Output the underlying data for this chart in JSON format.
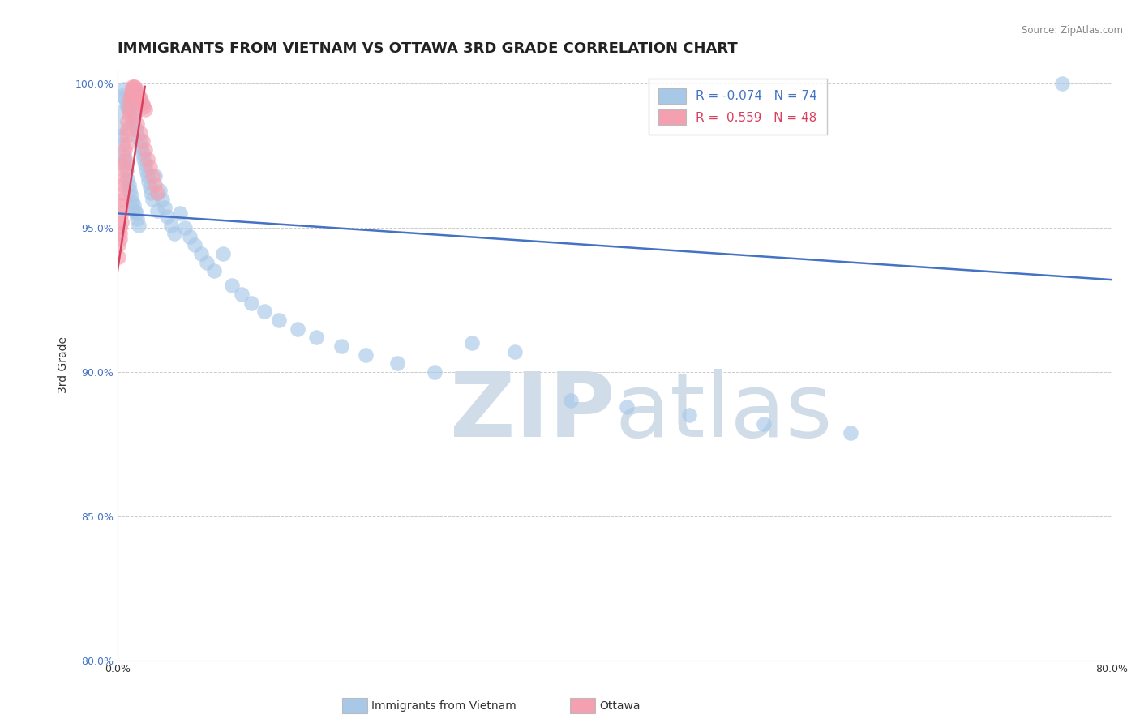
{
  "title": "IMMIGRANTS FROM VIETNAM VS OTTAWA 3RD GRADE CORRELATION CHART",
  "source_text": "Source: ZipAtlas.com",
  "ylabel": "3rd Grade",
  "xlim": [
    0.0,
    0.8
  ],
  "ylim": [
    0.8,
    1.005
  ],
  "xticks": [
    0.0,
    0.1,
    0.2,
    0.3,
    0.4,
    0.5,
    0.6,
    0.7,
    0.8
  ],
  "xticklabels": [
    "0.0%",
    "",
    "",
    "",
    "",
    "",
    "",
    "",
    "80.0%"
  ],
  "yticks": [
    0.8,
    0.85,
    0.9,
    0.95,
    1.0
  ],
  "yticklabels": [
    "80.0%",
    "85.0%",
    "90.0%",
    "95.0%",
    "100.0%"
  ],
  "blue_scatter_color": "#a8c8e8",
  "pink_scatter_color": "#f4a0b0",
  "blue_trend_color": "#4472c4",
  "pink_trend_color": "#d94060",
  "watermark_color": "#d0dde8",
  "background_color": "#ffffff",
  "grid_color": "#cccccc",
  "title_fontsize": 13,
  "axis_label_fontsize": 10,
  "tick_fontsize": 9,
  "blue_trend_x0": 0.0,
  "blue_trend_y0": 0.955,
  "blue_trend_x1": 0.8,
  "blue_trend_y1": 0.932,
  "pink_trend_x0": 0.0,
  "pink_trend_y0": 0.935,
  "pink_trend_x1": 0.022,
  "pink_trend_y1": 0.999,
  "blue_x": [
    0.001,
    0.002,
    0.003,
    0.004,
    0.004,
    0.005,
    0.005,
    0.006,
    0.006,
    0.007,
    0.007,
    0.008,
    0.008,
    0.009,
    0.01,
    0.01,
    0.011,
    0.011,
    0.012,
    0.012,
    0.013,
    0.013,
    0.014,
    0.015,
    0.015,
    0.016,
    0.016,
    0.017,
    0.018,
    0.019,
    0.02,
    0.021,
    0.022,
    0.023,
    0.024,
    0.025,
    0.026,
    0.027,
    0.028,
    0.03,
    0.032,
    0.034,
    0.036,
    0.038,
    0.04,
    0.043,
    0.046,
    0.05,
    0.054,
    0.058,
    0.062,
    0.067,
    0.072,
    0.078,
    0.085,
    0.092,
    0.1,
    0.108,
    0.118,
    0.13,
    0.145,
    0.16,
    0.18,
    0.2,
    0.225,
    0.255,
    0.285,
    0.32,
    0.365,
    0.41,
    0.46,
    0.52,
    0.59,
    0.76
  ],
  "blue_y": [
    0.99,
    0.985,
    0.982,
    0.979,
    0.996,
    0.975,
    0.998,
    0.973,
    0.995,
    0.97,
    0.993,
    0.992,
    0.967,
    0.965,
    0.991,
    0.963,
    0.99,
    0.961,
    0.988,
    0.959,
    0.986,
    0.958,
    0.956,
    0.984,
    0.955,
    0.982,
    0.953,
    0.951,
    0.98,
    0.978,
    0.976,
    0.974,
    0.972,
    0.97,
    0.968,
    0.966,
    0.964,
    0.962,
    0.96,
    0.968,
    0.956,
    0.963,
    0.96,
    0.957,
    0.954,
    0.951,
    0.948,
    0.955,
    0.95,
    0.947,
    0.944,
    0.941,
    0.938,
    0.935,
    0.941,
    0.93,
    0.927,
    0.924,
    0.921,
    0.918,
    0.915,
    0.912,
    0.909,
    0.906,
    0.903,
    0.9,
    0.91,
    0.907,
    0.89,
    0.888,
    0.885,
    0.882,
    0.879,
    1.0
  ],
  "pink_x": [
    0.001,
    0.001,
    0.002,
    0.002,
    0.002,
    0.003,
    0.003,
    0.003,
    0.004,
    0.004,
    0.004,
    0.005,
    0.005,
    0.005,
    0.006,
    0.006,
    0.007,
    0.007,
    0.008,
    0.008,
    0.009,
    0.009,
    0.01,
    0.01,
    0.011,
    0.011,
    0.012,
    0.012,
    0.013,
    0.014,
    0.015,
    0.016,
    0.017,
    0.018,
    0.019,
    0.02,
    0.021,
    0.022,
    0.014,
    0.016,
    0.018,
    0.02,
    0.022,
    0.024,
    0.026,
    0.028,
    0.03,
    0.032
  ],
  "pink_y": [
    0.94,
    0.944,
    0.946,
    0.948,
    0.95,
    0.952,
    0.955,
    0.958,
    0.96,
    0.962,
    0.965,
    0.967,
    0.97,
    0.972,
    0.974,
    0.977,
    0.979,
    0.982,
    0.984,
    0.987,
    0.989,
    0.991,
    0.993,
    0.995,
    0.996,
    0.997,
    0.998,
    0.999,
    0.999,
    0.999,
    0.998,
    0.997,
    0.996,
    0.995,
    0.994,
    0.993,
    0.992,
    0.991,
    0.989,
    0.986,
    0.983,
    0.98,
    0.977,
    0.974,
    0.971,
    0.968,
    0.965,
    0.962
  ]
}
